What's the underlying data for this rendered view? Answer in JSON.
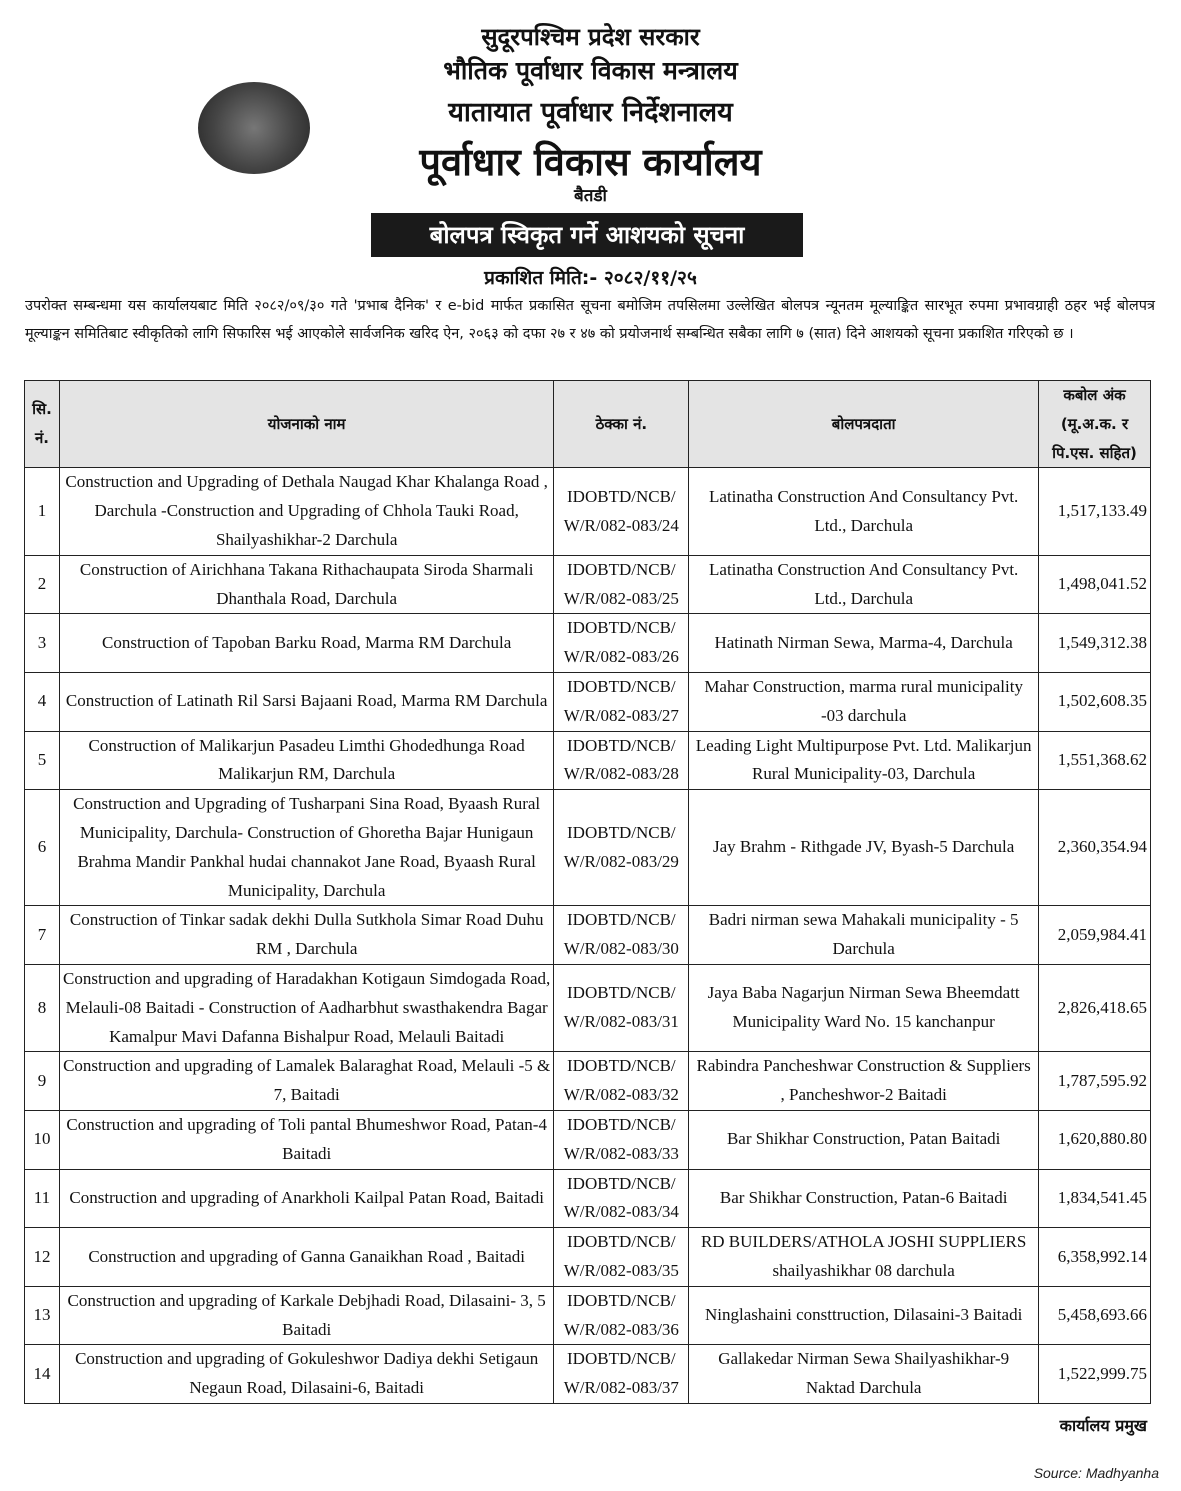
{
  "header": {
    "line1": "सुदूरपश्चिम प्रदेश सरकार",
    "line2": "भौतिक पूर्वाधार विकास मन्त्रालय",
    "line3": "यातायात पूर्वाधार निर्देशनालय",
    "line4": "पूर्वाधार विकास कार्यालय",
    "line5": "बैतडी",
    "banner": "बोलपत्र स्विकृत गर्ने आशयको सूचना",
    "published_date": "प्रकाशित मिति:- २०८२/११/२५"
  },
  "body_text": "उपरोक्त सम्बन्धमा यस कार्यालयबाट मिति २०८२/०९/३० गते 'प्रभाब दैनिक' र e-bid मार्फत प्रकासित सूचना बमोजिम तपसिलमा उल्लेखित बोलपत्र न्यूनतम मूल्याङ्कित सारभूत रुपमा प्रभावग्राही ठहर भई बोलपत्र मूल्याङ्कन समितिबाट स्वीकृतिको लागि सिफारिस भई आएकोले सार्वजनिक खरिद ऐन, २०६३ को दफा २७ र ४७ को प्रयोजनार्थ सम्बन्धित  सबैका लागि ७ (सात) दिने आशयको सूचना प्रकाशित गरिएको छ ।",
  "table": {
    "headers": [
      "सि. नं.",
      "योजनाको नाम",
      "ठेक्का नं.",
      "बोलपत्रदाता",
      "कबोल अंक (मू.अ.क. र पि.एस. सहित)"
    ],
    "rows": [
      [
        "1",
        "Construction and Upgrading of Dethala Naugad Khar Khalanga Road , Darchula -Construction and Upgrading of Chhola Tauki Road, Shailyashikhar-2 Darchula",
        "IDOBTD/NCB/ W/R/082-083/24",
        "Latinatha Construction And Consultancy Pvt. Ltd., Darchula",
        "1,517,133.49"
      ],
      [
        "2",
        "Construction of Airichhana Takana Rithachaupata Siroda Sharmali Dhanthala Road, Darchula",
        "IDOBTD/NCB/ W/R/082-083/25",
        "Latinatha Construction And Consultancy Pvt. Ltd., Darchula",
        "1,498,041.52"
      ],
      [
        "3",
        "Construction of Tapoban Barku Road, Marma RM Darchula",
        "IDOBTD/NCB/ W/R/082-083/26",
        "Hatinath Nirman Sewa, Marma-4, Darchula",
        "1,549,312.38"
      ],
      [
        "4",
        "Construction of Latinath Ril Sarsi Bajaani Road, Marma RM Darchula",
        "IDOBTD/NCB/ W/R/082-083/27",
        "Mahar Construction, marma rural municipality -03 darchula",
        "1,502,608.35"
      ],
      [
        "5",
        "Construction of Malikarjun Pasadeu Limthi Ghodedhunga Road Malikarjun RM, Darchula",
        "IDOBTD/NCB/ W/R/082-083/28",
        "Leading Light Multipurpose Pvt. Ltd. Malikarjun Rural Municipality-03, Darchula",
        "1,551,368.62"
      ],
      [
        "6",
        "Construction and Upgrading of Tusharpani Sina Road, Byaash Rural Municipality, Darchula- Construction of Ghoretha Bajar Hunigaun Brahma Mandir Pankhal hudai channakot Jane Road, Byaash Rural Municipality, Darchula",
        "IDOBTD/NCB/ W/R/082-083/29",
        "Jay Brahm - Rithgade JV, Byash-5 Darchula",
        "2,360,354.94"
      ],
      [
        "7",
        "Construction of Tinkar sadak dekhi Dulla Sutkhola Simar Road Duhu RM , Darchula",
        "IDOBTD/NCB/ W/R/082-083/30",
        "Badri nirman sewa Mahakali municipality - 5 Darchula",
        "2,059,984.41"
      ],
      [
        "8",
        "Construction and upgrading of Haradakhan Kotigaun Simdogada Road, Melauli-08 Baitadi - Construction of Aadharbhut swasthakendra Bagar Kamalpur Mavi Dafanna Bishalpur Road, Melauli Baitadi",
        "IDOBTD/NCB/ W/R/082-083/31",
        "Jaya Baba Nagarjun Nirman Sewa Bheemdatt Municipality Ward No. 15 kanchanpur",
        "2,826,418.65"
      ],
      [
        "9",
        "Construction and upgrading of Lamalek Balaraghat Road, Melauli -5 & 7, Baitadi",
        "IDOBTD/NCB/ W/R/082-083/32",
        "Rabindra Pancheshwar Construction & Suppliers , Pancheshwor-2 Baitadi",
        "1,787,595.92"
      ],
      [
        "10",
        "Construction and upgrading of Toli pantal Bhumeshwor Road, Patan-4 Baitadi",
        "IDOBTD/NCB/ W/R/082-083/33",
        "Bar Shikhar Construction, Patan Baitadi",
        "1,620,880.80"
      ],
      [
        "11",
        "Construction and upgrading of Anarkholi Kailpal Patan Road, Baitadi",
        "IDOBTD/NCB/ W/R/082-083/34",
        "Bar Shikhar Construction, Patan-6 Baitadi",
        "1,834,541.45"
      ],
      [
        "12",
        "Construction and upgrading of Ganna Ganaikhan Road , Baitadi",
        "IDOBTD/NCB/ W/R/082-083/35",
        "RD BUILDERS/ATHOLA JOSHI SUPPLIERS shailyashikhar 08 darchula",
        "6,358,992.14"
      ],
      [
        "13",
        "Construction and upgrading of Karkale Debjhadi Road, Dilasaini- 3, 5 Baitadi",
        "IDOBTD/NCB/ W/R/082-083/36",
        "Ninglashaini consttruction, Dilasaini-3 Baitadi",
        "5,458,693.66"
      ],
      [
        "14",
        "Construction and upgrading of Gokuleshwor Dadiya dekhi Setigaun Negaun Road, Dilasaini-6, Baitadi",
        "IDOBTD/NCB/ W/R/082-083/37",
        "Gallakedar Nirman Sewa Shailyashikhar-9 Naktad Darchula",
        "1,522,999.75"
      ]
    ]
  },
  "signature": "कार्यालय प्रमुख",
  "source": "Source: Madhyanha"
}
